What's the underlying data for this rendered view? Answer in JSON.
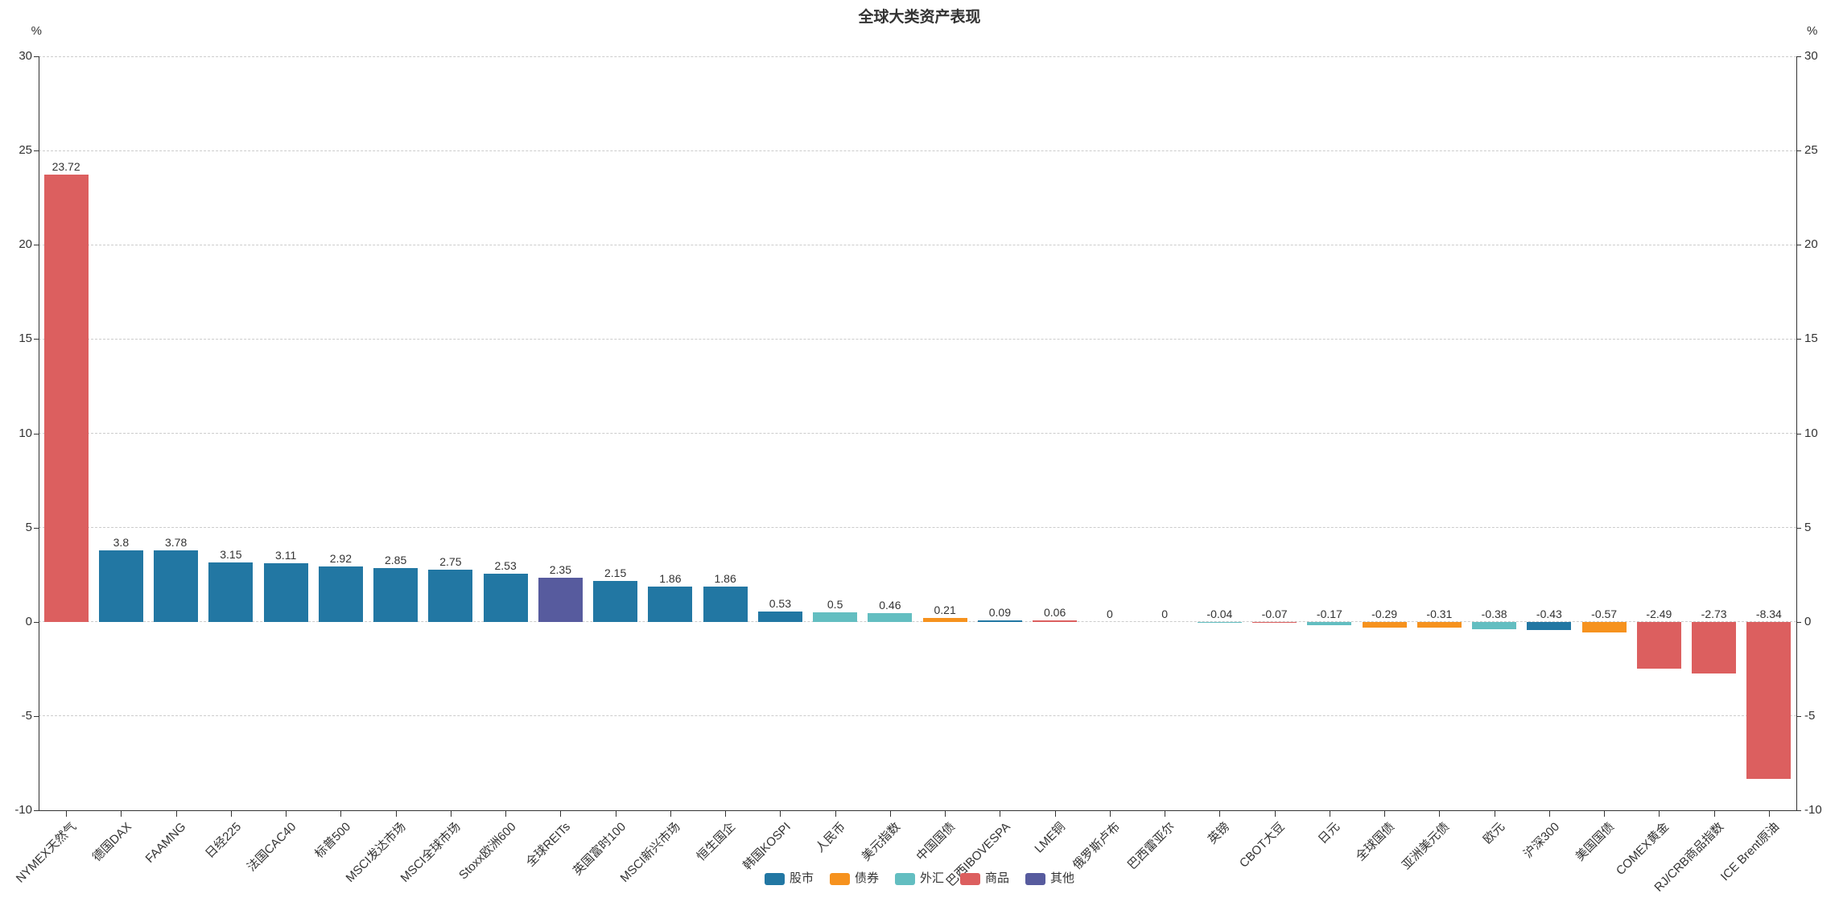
{
  "title": "全球大类资产表现",
  "y_axis": {
    "unit": "%",
    "ticks": [
      30,
      25,
      20,
      15,
      10,
      5,
      0,
      -5,
      -10
    ]
  },
  "legend": [
    {
      "label": "股市",
      "color": "#2277A3"
    },
    {
      "label": "债券",
      "color": "#F6921E"
    },
    {
      "label": "外汇",
      "color": "#63BEC1"
    },
    {
      "label": "商品",
      "color": "#DC5F5F"
    },
    {
      "label": "其他",
      "color": "#575B9E"
    }
  ],
  "chart_data": {
    "type": "bar",
    "title": "全球大类资产表现",
    "xlabel": "",
    "ylabel": "%",
    "ylim": [
      -10,
      30
    ],
    "ytick_interval": 5,
    "grid": true,
    "grid_style": "dashed",
    "legend_position": "bottom-center",
    "bar_label_position": "top",
    "points": [
      {
        "category": "NYMEX天然气",
        "value": 23.72,
        "class": "商品"
      },
      {
        "category": "德国DAX",
        "value": 3.8,
        "class": "股市"
      },
      {
        "category": "FAAMNG",
        "value": 3.78,
        "class": "股市"
      },
      {
        "category": "日经225",
        "value": 3.15,
        "class": "股市"
      },
      {
        "category": "法国CAC40",
        "value": 3.11,
        "class": "股市"
      },
      {
        "category": "标普500",
        "value": 2.92,
        "class": "股市"
      },
      {
        "category": "MSCI发达市场",
        "value": 2.85,
        "class": "股市"
      },
      {
        "category": "MSCI全球市场",
        "value": 2.75,
        "class": "股市"
      },
      {
        "category": "Stoxx欧洲600",
        "value": 2.53,
        "class": "股市"
      },
      {
        "category": "全球REITs",
        "value": 2.35,
        "class": "其他"
      },
      {
        "category": "英国富时100",
        "value": 2.15,
        "class": "股市"
      },
      {
        "category": "MSCI新兴市场",
        "value": 1.86,
        "class": "股市"
      },
      {
        "category": "恒生国企",
        "value": 1.86,
        "class": "股市"
      },
      {
        "category": "韩国KOSPI",
        "value": 0.53,
        "class": "股市"
      },
      {
        "category": "人民币",
        "value": 0.5,
        "class": "外汇"
      },
      {
        "category": "美元指数",
        "value": 0.46,
        "class": "外汇"
      },
      {
        "category": "中国国债",
        "value": 0.21,
        "class": "债券"
      },
      {
        "category": "巴西IBOVESPA",
        "value": 0.09,
        "class": "股市"
      },
      {
        "category": "LME铜",
        "value": 0.06,
        "class": "商品"
      },
      {
        "category": "俄罗斯卢布",
        "value": 0,
        "class": "外汇"
      },
      {
        "category": "巴西雷亚尔",
        "value": 0,
        "class": "外汇"
      },
      {
        "category": "英镑",
        "value": -0.04,
        "class": "外汇"
      },
      {
        "category": "CBOT大豆",
        "value": -0.07,
        "class": "商品"
      },
      {
        "category": "日元",
        "value": -0.17,
        "class": "外汇"
      },
      {
        "category": "全球国债",
        "value": -0.29,
        "class": "债券"
      },
      {
        "category": "亚洲美元债",
        "value": -0.31,
        "class": "债券"
      },
      {
        "category": "欧元",
        "value": -0.38,
        "class": "外汇"
      },
      {
        "category": "沪深300",
        "value": -0.43,
        "class": "股市"
      },
      {
        "category": "美国国债",
        "value": -0.57,
        "class": "债券"
      },
      {
        "category": "COMEX黄金",
        "value": -2.49,
        "class": "商品"
      },
      {
        "category": "RJ/CRB商品指数",
        "value": -2.73,
        "class": "商品"
      },
      {
        "category": "ICE Brent原油",
        "value": -8.34,
        "class": "商品"
      }
    ]
  }
}
